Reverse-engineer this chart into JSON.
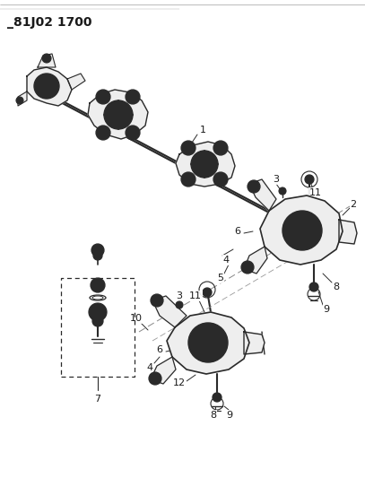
{
  "title": "_81J02 1700",
  "title_fontsize": 10,
  "title_fontweight": "bold",
  "bg_color": "#ffffff",
  "fg_color": "#1a1a1a",
  "fig_width": 4.07,
  "fig_height": 5.33,
  "dpi": 100,
  "line_color": "#2a2a2a",
  "gray_fill": "#d8d8d8",
  "light_fill": "#eeeeee"
}
